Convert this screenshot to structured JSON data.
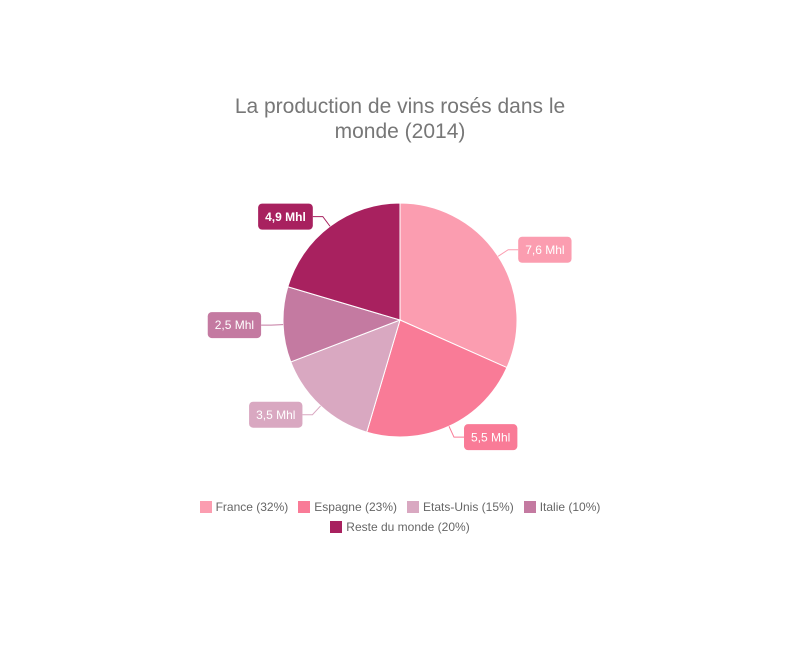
{
  "chart_data": {
    "type": "pie",
    "title": "La production de vins rosés dans le monde (2014)",
    "categories": [
      "France (32%)",
      "Espagne (23%)",
      "Etats-Unis (15%)",
      "Italie (10%)",
      "Reste du monde (20%)"
    ],
    "values": [
      7.6,
      5.5,
      3.5,
      2.5,
      4.9
    ],
    "value_labels": [
      "7,6 Mhl",
      "5,5 Mhl",
      "3,5 Mhl",
      "2,5 Mhl",
      "4,9 Mhl"
    ],
    "colors": [
      "#fb9db0",
      "#f97b97",
      "#d9a8c1",
      "#c47aa1",
      "#a8215f"
    ]
  }
}
